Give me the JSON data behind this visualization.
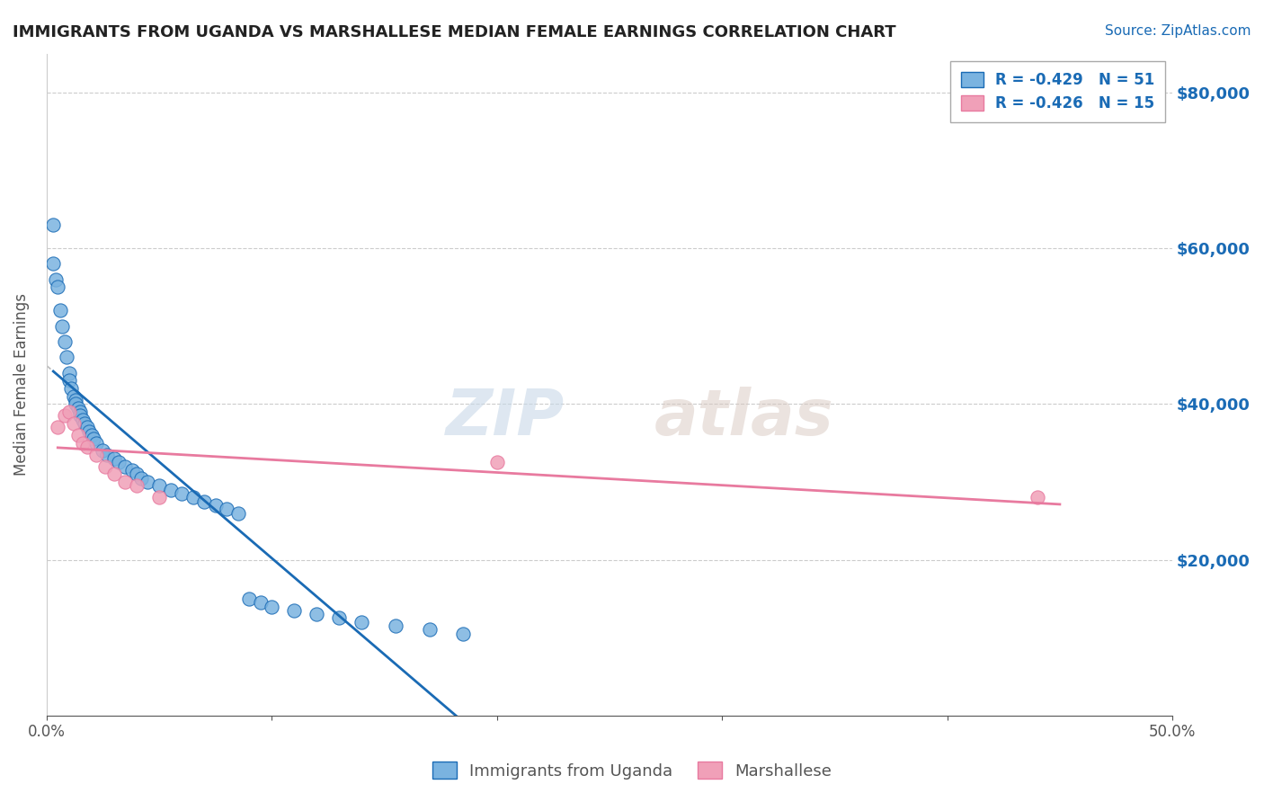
{
  "title": "IMMIGRANTS FROM UGANDA VS MARSHALLESE MEDIAN FEMALE EARNINGS CORRELATION CHART",
  "source": "Source: ZipAtlas.com",
  "xlabel": "",
  "ylabel": "Median Female Earnings",
  "xlim": [
    0.0,
    0.5
  ],
  "ylim": [
    0,
    85000
  ],
  "yticks": [
    20000,
    40000,
    60000,
    80000
  ],
  "ytick_labels": [
    "$20,000",
    "$40,000",
    "$60,000",
    "$80,000"
  ],
  "xticks": [
    0.0,
    0.1,
    0.2,
    0.3,
    0.4,
    0.5
  ],
  "xtick_labels": [
    "0.0%",
    "",
    "",
    "",
    "",
    "50.0%"
  ],
  "legend_entries": [
    {
      "label": "R = -0.429   N = 51",
      "color": "#a8c8f0"
    },
    {
      "label": "R = -0.426   N = 15",
      "color": "#f0a8c0"
    }
  ],
  "legend_bottom": [
    "Immigrants from Uganda",
    "Marshallese"
  ],
  "background_color": "#ffffff",
  "grid_color": "#cccccc",
  "uganda_x": [
    0.003,
    0.003,
    0.004,
    0.005,
    0.006,
    0.007,
    0.008,
    0.009,
    0.01,
    0.01,
    0.011,
    0.012,
    0.013,
    0.013,
    0.014,
    0.015,
    0.015,
    0.016,
    0.017,
    0.018,
    0.019,
    0.02,
    0.021,
    0.022,
    0.025,
    0.027,
    0.03,
    0.032,
    0.035,
    0.038,
    0.04,
    0.042,
    0.045,
    0.05,
    0.055,
    0.06,
    0.065,
    0.07,
    0.075,
    0.08,
    0.085,
    0.09,
    0.095,
    0.1,
    0.11,
    0.12,
    0.13,
    0.14,
    0.155,
    0.17,
    0.185
  ],
  "uganda_y": [
    63000,
    58000,
    56000,
    55000,
    52000,
    50000,
    48000,
    46000,
    44000,
    43000,
    42000,
    41000,
    40500,
    40000,
    39500,
    39000,
    38500,
    38000,
    37500,
    37000,
    36500,
    36000,
    35500,
    35000,
    34000,
    33500,
    33000,
    32500,
    32000,
    31500,
    31000,
    30500,
    30000,
    29500,
    29000,
    28500,
    28000,
    27500,
    27000,
    26500,
    26000,
    15000,
    14500,
    14000,
    13500,
    13000,
    12500,
    12000,
    11500,
    11000,
    10500
  ],
  "marshallese_x": [
    0.005,
    0.008,
    0.01,
    0.012,
    0.014,
    0.016,
    0.018,
    0.022,
    0.026,
    0.03,
    0.035,
    0.04,
    0.05,
    0.2,
    0.44
  ],
  "marshallese_y": [
    37000,
    38500,
    39000,
    37500,
    36000,
    35000,
    34500,
    33500,
    32000,
    31000,
    30000,
    29500,
    28000,
    32500,
    28000
  ],
  "uganda_line_color": "#1a6bb5",
  "marshallese_line_color": "#e87a9f",
  "trend_line_color": "#bbbbbb",
  "point_color_uganda": "#7ab3e0",
  "point_color_marshallese": "#f0a0b8",
  "point_size": 120,
  "title_color": "#222222",
  "source_color": "#1a6bb5",
  "axis_label_color": "#555555",
  "right_tick_color": "#1a6bb5"
}
